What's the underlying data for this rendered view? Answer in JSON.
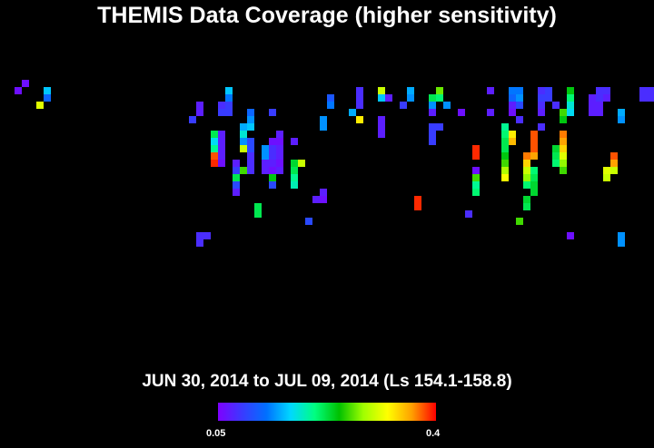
{
  "chart_data": {
    "type": "heatmap",
    "title": "THEMIS Data Coverage (higher sensitivity)",
    "subtitle": "JUN 30, 2014 to JUL 09, 2014 (Ls 154.1-158.8)",
    "colorbar": {
      "min_label": "0.05",
      "max_label": "0.4",
      "min": 0.05,
      "max": 0.4,
      "colors": [
        "#7f00ff",
        "#3a3aff",
        "#0070ff",
        "#00d8ff",
        "#00ff80",
        "#00c000",
        "#a0ff00",
        "#ffff00",
        "#ffa000",
        "#ff0000"
      ]
    },
    "grid": {
      "columns": 90,
      "rows": 62
    },
    "strips": [
      {
        "col": 3,
        "row_start": 11,
        "values": [
          0.06
        ]
      },
      {
        "col": 2,
        "row_start": 12,
        "values": [
          0.06
        ]
      },
      {
        "col": 6,
        "row_start": 12,
        "values": [
          0.16,
          0.12
        ]
      },
      {
        "col": 5,
        "row_start": 14,
        "values": [
          0.31
        ]
      },
      {
        "col": 27,
        "row_start": 14,
        "values": [
          0.07,
          0.07
        ]
      },
      {
        "col": 26,
        "row_start": 16,
        "values": [
          0.09
        ]
      },
      {
        "col": 31,
        "row_start": 12,
        "values": [
          0.16,
          0.13,
          0.09,
          0.09
        ]
      },
      {
        "col": 30,
        "row_start": 14,
        "values": [
          0.08,
          0.09
        ]
      },
      {
        "col": 29,
        "row_start": 18,
        "values": [
          0.22,
          0.17,
          0.2,
          0.38,
          0.39
        ]
      },
      {
        "col": 30,
        "row_start": 18,
        "values": [
          0.07,
          0.07,
          0.07,
          0.07,
          0.06
        ]
      },
      {
        "col": 34,
        "row_start": 15,
        "values": [
          0.12,
          0.14,
          0.16
        ]
      },
      {
        "col": 33,
        "row_start": 17,
        "values": [
          0.15,
          0.18,
          0.14,
          0.3
        ]
      },
      {
        "col": 34,
        "row_start": 19,
        "values": [
          0.1,
          0.1,
          0.08,
          0.08,
          0.08
        ]
      },
      {
        "col": 32,
        "row_start": 22,
        "values": [
          0.07,
          0.09,
          0.22,
          0.1,
          0.07
        ]
      },
      {
        "col": 33,
        "row_start": 23,
        "values": [
          0.26
        ]
      },
      {
        "col": 37,
        "row_start": 15,
        "values": [
          0.09
        ]
      },
      {
        "col": 38,
        "row_start": 18,
        "values": [
          0.07,
          0.06,
          0.07,
          0.07,
          0.06,
          0.07
        ]
      },
      {
        "col": 37,
        "row_start": 19,
        "values": [
          0.06,
          0.08,
          0.08,
          0.07,
          0.06,
          0.24
        ]
      },
      {
        "col": 36,
        "row_start": 20,
        "values": [
          0.14,
          0.14,
          0.07,
          0.07
        ]
      },
      {
        "col": 40,
        "row_start": 19,
        "values": [
          0.07
        ]
      },
      {
        "col": 37,
        "row_start": 25,
        "values": [
          0.1
        ]
      },
      {
        "col": 40,
        "row_start": 22,
        "values": [
          0.23,
          0.22,
          0.2,
          0.19
        ]
      },
      {
        "col": 41,
        "row_start": 22,
        "values": [
          0.3
        ]
      },
      {
        "col": 35,
        "row_start": 28,
        "values": [
          0.22,
          0.22
        ]
      },
      {
        "col": 44,
        "row_start": 26,
        "values": [
          0.07,
          0.06
        ]
      },
      {
        "col": 43,
        "row_start": 27,
        "values": [
          0.07
        ]
      },
      {
        "col": 42,
        "row_start": 30,
        "values": [
          0.1
        ]
      },
      {
        "col": 27,
        "row_start": 32,
        "values": [
          0.08,
          0.08
        ]
      },
      {
        "col": 28,
        "row_start": 32,
        "values": [
          0.08
        ]
      },
      {
        "col": 45,
        "row_start": 13,
        "values": [
          0.11,
          0.13
        ]
      },
      {
        "col": 44,
        "row_start": 16,
        "values": [
          0.14,
          0.14
        ]
      },
      {
        "col": 49,
        "row_start": 12,
        "values": [
          0.08,
          0.08,
          0.08
        ]
      },
      {
        "col": 48,
        "row_start": 15,
        "values": [
          0.15
        ]
      },
      {
        "col": 49,
        "row_start": 16,
        "values": [
          0.33
        ]
      },
      {
        "col": 52,
        "row_start": 12,
        "values": [
          0.3,
          0.16
        ]
      },
      {
        "col": 53,
        "row_start": 13,
        "values": [
          0.07
        ]
      },
      {
        "col": 52,
        "row_start": 16,
        "values": [
          0.07,
          0.07,
          0.07
        ]
      },
      {
        "col": 56,
        "row_start": 12,
        "values": [
          0.15,
          0.14
        ]
      },
      {
        "col": 55,
        "row_start": 14,
        "values": [
          0.09
        ]
      },
      {
        "col": 60,
        "row_start": 12,
        "values": [
          0.27,
          0.21
        ]
      },
      {
        "col": 59,
        "row_start": 13,
        "values": [
          0.22,
          0.14,
          0.07
        ]
      },
      {
        "col": 61,
        "row_start": 14,
        "values": [
          0.14
        ]
      },
      {
        "col": 60,
        "row_start": 17,
        "values": [
          0.09
        ]
      },
      {
        "col": 59,
        "row_start": 17,
        "values": [
          0.09,
          0.09,
          0.09
        ]
      },
      {
        "col": 57,
        "row_start": 27,
        "values": [
          0.39,
          0.39
        ]
      },
      {
        "col": 63,
        "row_start": 15,
        "values": [
          0.06
        ]
      },
      {
        "col": 67,
        "row_start": 12,
        "values": [
          0.07
        ]
      },
      {
        "col": 67,
        "row_start": 15,
        "values": [
          0.07
        ]
      },
      {
        "col": 65,
        "row_start": 20,
        "values": [
          0.39,
          0.39
        ]
      },
      {
        "col": 65,
        "row_start": 23,
        "values": [
          0.06,
          0.26,
          0.2,
          0.21
        ]
      },
      {
        "col": 64,
        "row_start": 29,
        "values": [
          0.08
        ]
      },
      {
        "col": 69,
        "row_start": 17,
        "values": [
          0.2,
          0.21,
          0.22,
          0.22,
          0.24,
          0.26,
          0.29,
          0.32
        ]
      },
      {
        "col": 70,
        "row_start": 18,
        "values": [
          0.33,
          0.35
        ]
      },
      {
        "col": 70,
        "row_start": 12,
        "values": [
          0.13,
          0.12,
          0.07,
          0.06
        ]
      },
      {
        "col": 71,
        "row_start": 12,
        "values": [
          0.13,
          0.14,
          0.1
        ]
      },
      {
        "col": 71,
        "row_start": 16,
        "values": [
          0.08
        ]
      },
      {
        "col": 72,
        "row_start": 27,
        "values": [
          0.23,
          0.22
        ]
      },
      {
        "col": 71,
        "row_start": 30,
        "values": [
          0.26
        ]
      },
      {
        "col": 74,
        "row_start": 12,
        "values": [
          0.08,
          0.09,
          0.08,
          0.07
        ]
      },
      {
        "col": 75,
        "row_start": 12,
        "values": [
          0.09,
          0.09
        ]
      },
      {
        "col": 73,
        "row_start": 18,
        "values": [
          0.38,
          0.38,
          0.38,
          0.36
        ]
      },
      {
        "col": 72,
        "row_start": 21,
        "values": [
          0.37,
          0.34,
          0.3,
          0.28,
          0.21
        ]
      },
      {
        "col": 73,
        "row_start": 23,
        "values": [
          0.21,
          0.22,
          0.23,
          0.23
        ]
      },
      {
        "col": 74,
        "row_start": 17,
        "values": [
          0.08
        ]
      },
      {
        "col": 76,
        "row_start": 14,
        "values": [
          0.08
        ]
      },
      {
        "col": 78,
        "row_start": 12,
        "values": [
          0.24,
          0.21,
          0.18,
          0.17
        ]
      },
      {
        "col": 77,
        "row_start": 15,
        "values": [
          0.26,
          0.24
        ]
      },
      {
        "col": 77,
        "row_start": 18,
        "values": [
          0.37,
          0.36,
          0.34,
          0.31,
          0.28,
          0.26
        ]
      },
      {
        "col": 76,
        "row_start": 20,
        "values": [
          0.23,
          0.22,
          0.21
        ]
      },
      {
        "col": 82,
        "row_start": 12,
        "values": [
          0.08,
          0.08,
          0.07,
          0.07
        ]
      },
      {
        "col": 83,
        "row_start": 12,
        "values": [
          0.08,
          0.07
        ]
      },
      {
        "col": 81,
        "row_start": 13,
        "values": [
          0.07,
          0.07,
          0.07
        ]
      },
      {
        "col": 85,
        "row_start": 15,
        "values": [
          0.15,
          0.14
        ]
      },
      {
        "col": 84,
        "row_start": 21,
        "values": [
          0.38,
          0.36,
          0.3
        ]
      },
      {
        "col": 83,
        "row_start": 23,
        "values": [
          0.31,
          0.3
        ]
      },
      {
        "col": 78,
        "row_start": 32,
        "values": [
          0.06
        ]
      },
      {
        "col": 85,
        "row_start": 32,
        "values": [
          0.14,
          0.14
        ]
      },
      {
        "col": 88,
        "row_start": 12,
        "values": [
          0.08,
          0.08
        ]
      },
      {
        "col": 89,
        "row_start": 12,
        "values": [
          0.08,
          0.08
        ]
      }
    ]
  }
}
